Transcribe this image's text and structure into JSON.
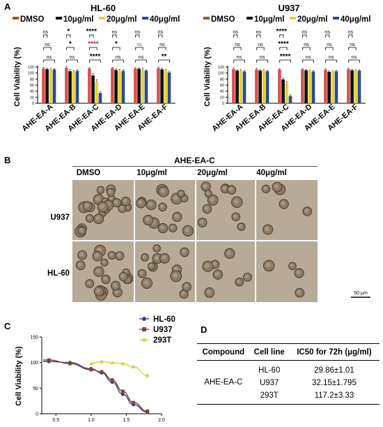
{
  "panels": {
    "A": {
      "letter": "A",
      "legend": [
        "DMSO",
        "10μg/ml",
        "20μg/ml",
        "40μg/ml"
      ],
      "legend_colors": [
        "#8B5A2B",
        "#111111",
        "#E3D23C",
        "#2E4A8C"
      ],
      "bar_colors": [
        "#D9534F",
        "#111111",
        "#E3D23C",
        "#2E4A8C"
      ]
    },
    "B": {
      "letter": "B",
      "title": "AHE-EA-C",
      "columns": [
        "DMSO",
        "10μg/ml",
        "20μg/ml",
        "40μg/ml"
      ],
      "rows": [
        "U937",
        "HL-60"
      ],
      "scale_bar": "50 μm"
    },
    "C": {
      "letter": "C"
    },
    "D": {
      "letter": "D",
      "headers": [
        "Compound",
        "Cell line",
        "IC50 for 72h (μg/ml)"
      ],
      "compound": "AHE-EA-C",
      "rows": [
        {
          "cell_line": "HL-60",
          "ic50": "29.86±1.01"
        },
        {
          "cell_line": "U937",
          "ic50": "32.15±1.795"
        },
        {
          "cell_line": "293T",
          "ic50": "117.2±3.33"
        }
      ]
    }
  },
  "chart_data": [
    {
      "type": "bar",
      "title": "HL-60",
      "ylabel": "Cell Viability (%)",
      "ylim": [
        0,
        120
      ],
      "yticks": [
        0,
        20,
        40,
        60,
        80,
        100,
        120
      ],
      "categories": [
        "AHE-EA-A",
        "AHE-EA-B",
        "AHE-EA-C",
        "AHE-EA-D",
        "AHE-EA-E",
        "AHE-EA-F"
      ],
      "series": [
        {
          "name": "DMSO",
          "values": [
            115,
            117,
            115,
            116,
            115,
            116
          ]
        },
        {
          "name": "10μg/ml",
          "values": [
            113,
            106,
            92,
            110,
            114,
            112
          ]
        },
        {
          "name": "20μg/ml",
          "values": [
            112,
            104,
            71,
            107,
            112,
            108
          ]
        },
        {
          "name": "40μg/ml",
          "values": [
            112,
            107,
            34,
            107,
            108,
            102
          ]
        }
      ],
      "errors": [
        [
          4,
          4,
          3,
          3,
          3,
          4
        ],
        [
          3,
          5,
          6,
          4,
          3,
          4
        ],
        [
          4,
          4,
          7,
          5,
          4,
          4
        ],
        [
          3,
          4,
          5,
          4,
          3,
          4
        ]
      ],
      "annotations": [
        [
          "ns",
          "ns",
          "ns"
        ],
        [
          "*",
          "*",
          "ns"
        ],
        [
          "****",
          "****",
          "****"
        ],
        [
          "ns",
          "*",
          "ns"
        ],
        [
          "ns",
          "ns",
          "ns"
        ],
        [
          "ns",
          "ns",
          "**"
        ]
      ],
      "grid": false,
      "legend": "top"
    },
    {
      "type": "bar",
      "title": "U937",
      "ylabel": "Cell Viability (%)",
      "ylim": [
        0,
        120
      ],
      "yticks": [
        0,
        20,
        40,
        60,
        80,
        100,
        120
      ],
      "categories": [
        "AHE-EA-A",
        "AHE-EA-B",
        "AHE-EA-C",
        "AHE-EA-D",
        "AHE-EA-E",
        "AHE-EA-F"
      ],
      "series": [
        {
          "name": "DMSO",
          "values": [
            113,
            112,
            112,
            112,
            111,
            113
          ]
        },
        {
          "name": "10μg/ml",
          "values": [
            108,
            108,
            79,
            109,
            104,
            109
          ]
        },
        {
          "name": "20μg/ml",
          "values": [
            108,
            108,
            68,
            106,
            104,
            107
          ]
        },
        {
          "name": "40μg/ml",
          "values": [
            105,
            106,
            24,
            105,
            106,
            108
          ]
        }
      ],
      "errors": [
        [
          4,
          4,
          3,
          3,
          3,
          3
        ],
        [
          3,
          3,
          5,
          3,
          3,
          3
        ],
        [
          3,
          3,
          4,
          3,
          3,
          3
        ],
        [
          3,
          3,
          4,
          3,
          3,
          3
        ]
      ],
      "annotations": [
        [
          "ns",
          "ns",
          "ns"
        ],
        [
          "ns",
          "ns",
          "ns"
        ],
        [
          "****",
          "****",
          "****"
        ],
        [
          "ns",
          "ns",
          "ns"
        ],
        [
          "ns",
          "ns",
          "ns"
        ],
        [
          "ns",
          "ns",
          "ns"
        ]
      ],
      "grid": false,
      "legend": "top"
    },
    {
      "type": "scatter",
      "ylabel": "Cell Viability (%)",
      "xlim": [
        0.3,
        2.0
      ],
      "ylim": [
        0,
        150
      ],
      "xticks": [
        "0.5",
        "1.0",
        "1.5",
        "2.0"
      ],
      "yticks": [
        "0",
        "50",
        "100",
        "150"
      ],
      "series": [
        {
          "name": "HL-60",
          "x": [
            0.4,
            0.7,
            1.0,
            1.15,
            1.3,
            1.45,
            1.6,
            1.8
          ],
          "y": [
            102,
            100,
            88,
            80,
            62,
            38,
            18,
            3
          ],
          "err": [
            3,
            3,
            3,
            3,
            3,
            3,
            3,
            3
          ]
        },
        {
          "name": "U937",
          "x": [
            0.4,
            0.7,
            1.0,
            1.15,
            1.3,
            1.45,
            1.6,
            1.8
          ],
          "y": [
            105,
            98,
            86,
            82,
            66,
            44,
            22,
            5
          ],
          "err": [
            3,
            3,
            3,
            3,
            3,
            3,
            3,
            3
          ]
        },
        {
          "name": "293T",
          "x": [
            1.0,
            1.15,
            1.3,
            1.45,
            1.6,
            1.8
          ],
          "y": [
            98,
            102,
            100,
            98,
            92,
            75
          ],
          "err": [
            3,
            3,
            3,
            3,
            3,
            5
          ]
        }
      ],
      "colors": [
        "#3A3F8F",
        "#7A4A2A",
        "#D8D034"
      ],
      "grid": false,
      "legend": "top-right"
    }
  ]
}
